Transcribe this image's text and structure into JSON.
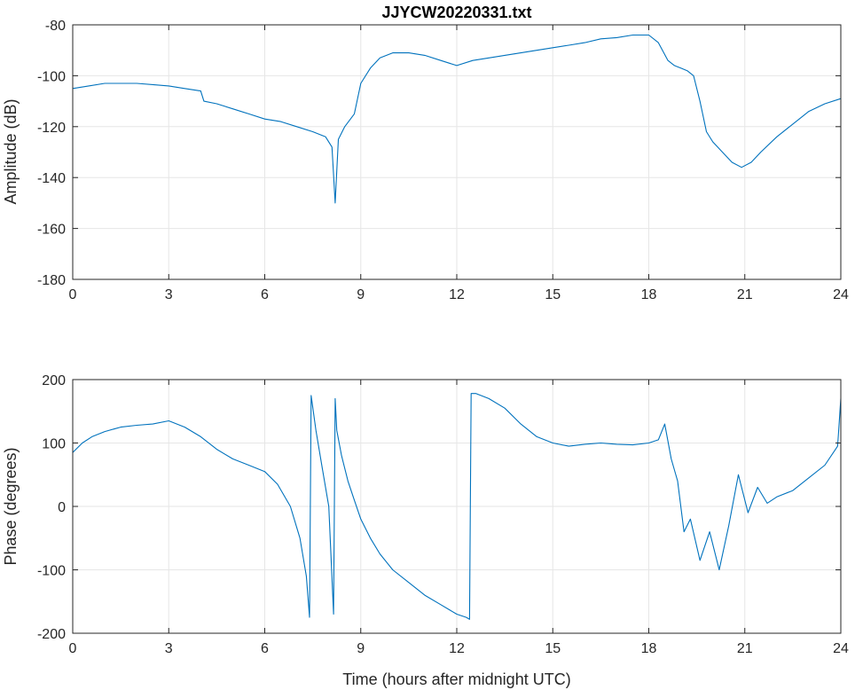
{
  "chart_data": [
    {
      "type": "line",
      "title": "JJYCW20220331.txt",
      "xlabel": "",
      "ylabel": "Amplitude (dB)",
      "xlim": [
        0,
        24
      ],
      "ylim": [
        -180,
        -80
      ],
      "xticks": [
        "0",
        "3",
        "6",
        "9",
        "12",
        "15",
        "18",
        "21",
        "24"
      ],
      "yticks": [
        "-80",
        "-100",
        "-120",
        "-140",
        "-160",
        "-180"
      ],
      "grid": true,
      "color": "#0072BD",
      "series": [
        {
          "x": [
            0,
            0.5,
            1,
            1.5,
            2,
            2.5,
            3,
            3.5,
            4,
            4.1,
            4.5,
            5,
            5.5,
            6,
            6.5,
            7,
            7.5,
            7.9,
            8.1,
            8.2,
            8.3,
            8.5,
            8.8,
            9,
            9.3,
            9.6,
            10,
            10.5,
            11,
            11.5,
            12,
            12.5,
            13,
            13.5,
            14,
            14.5,
            15,
            15.5,
            16,
            16.5,
            17,
            17.5,
            18,
            18.3,
            18.6,
            18.8,
            19,
            19.2,
            19.4,
            19.6,
            19.8,
            20,
            20.3,
            20.6,
            20.9,
            21.2,
            21.5,
            22,
            22.5,
            23,
            23.5,
            24
          ],
          "y": [
            -105,
            -104,
            -103,
            -103,
            -103,
            -103.5,
            -104,
            -105,
            -106,
            -110,
            -111,
            -113,
            -115,
            -117,
            -118,
            -120,
            -122,
            -124,
            -128,
            -150,
            -125,
            -120,
            -115,
            -103,
            -97,
            -93,
            -91,
            -91,
            -92,
            -94,
            -96,
            -94,
            -93,
            -92,
            -91,
            -90,
            -89,
            -88,
            -87,
            -85.5,
            -85,
            -84,
            -84,
            -87,
            -94,
            -96,
            -97,
            -98,
            -100,
            -110,
            -122,
            -126,
            -130,
            -134,
            -136,
            -134,
            -130,
            -124,
            -119,
            -114,
            -111,
            -109
          ]
        }
      ]
    },
    {
      "type": "line",
      "title": "",
      "xlabel": "Time (hours after midnight UTC)",
      "ylabel": "Phase (degrees)",
      "xlim": [
        0,
        24
      ],
      "ylim": [
        -200,
        200
      ],
      "xticks": [
        "0",
        "3",
        "6",
        "9",
        "12",
        "15",
        "18",
        "21",
        "24"
      ],
      "yticks": [
        "200",
        "100",
        "0",
        "-100",
        "-200"
      ],
      "grid": true,
      "color": "#0072BD",
      "series": [
        {
          "x": [
            0,
            0.3,
            0.6,
            1,
            1.5,
            2,
            2.5,
            3,
            3.5,
            4,
            4.5,
            5,
            5.5,
            6,
            6.4,
            6.8,
            7.1,
            7.3,
            7.4,
            7.45,
            7.6,
            7.8,
            8.0,
            8.15,
            8.2,
            8.25,
            8.4,
            8.6,
            8.8,
            9,
            9.3,
            9.6,
            10,
            10.5,
            11,
            11.5,
            12,
            12.3,
            12.4,
            12.45,
            12.6,
            13,
            13.5,
            14,
            14.5,
            15,
            15.5,
            16,
            16.5,
            17,
            17.5,
            18,
            18.3,
            18.5,
            18.7,
            18.9,
            19.1,
            19.3,
            19.6,
            19.9,
            20.2,
            20.5,
            20.8,
            21.1,
            21.4,
            21.7,
            22,
            22.5,
            23,
            23.5,
            23.9,
            24
          ],
          "y": [
            85,
            100,
            110,
            118,
            125,
            128,
            130,
            135,
            125,
            110,
            90,
            75,
            65,
            55,
            35,
            0,
            -50,
            -110,
            -175,
            175,
            120,
            60,
            0,
            -170,
            170,
            120,
            80,
            40,
            10,
            -20,
            -50,
            -75,
            -100,
            -120,
            -140,
            -155,
            -170,
            -175,
            -178,
            178,
            178,
            170,
            155,
            130,
            110,
            100,
            95,
            98,
            100,
            98,
            97,
            100,
            105,
            130,
            75,
            40,
            -40,
            -20,
            -85,
            -40,
            -100,
            -30,
            50,
            -10,
            30,
            5,
            15,
            25,
            45,
            65,
            95,
            170
          ]
        }
      ]
    }
  ]
}
